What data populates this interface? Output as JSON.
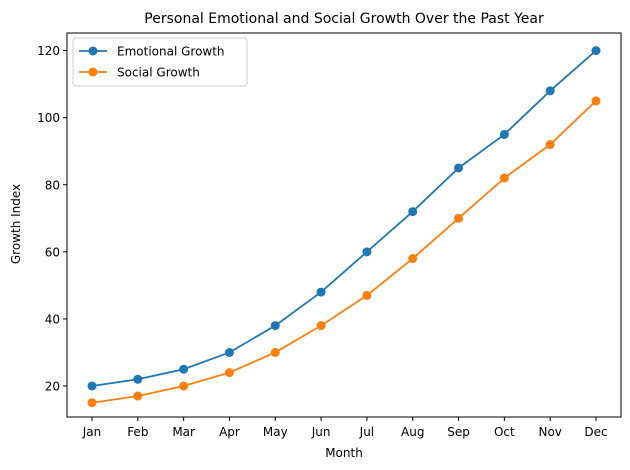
{
  "chart_data": {
    "type": "line",
    "title": "Personal Emotional and Social Growth Over the Past Year",
    "xlabel": "Month",
    "ylabel": "Growth Index",
    "categories": [
      "Jan",
      "Feb",
      "Mar",
      "Apr",
      "May",
      "Jun",
      "Jul",
      "Aug",
      "Sep",
      "Oct",
      "Nov",
      "Dec"
    ],
    "series": [
      {
        "name": "Emotional Growth",
        "color": "#1f77b4",
        "marker": "circle",
        "values": [
          20,
          22,
          25,
          30,
          38,
          48,
          60,
          72,
          85,
          95,
          108,
          120
        ]
      },
      {
        "name": "Social Growth",
        "color": "#ff7f0e",
        "marker": "circle",
        "values": [
          15,
          17,
          20,
          24,
          30,
          38,
          47,
          58,
          70,
          82,
          92,
          105
        ]
      }
    ],
    "yticks": [
      20,
      40,
      60,
      80,
      100,
      120
    ],
    "ylim": [
      10.75,
      125.25
    ],
    "grid": false,
    "legend_position": "top-left"
  }
}
